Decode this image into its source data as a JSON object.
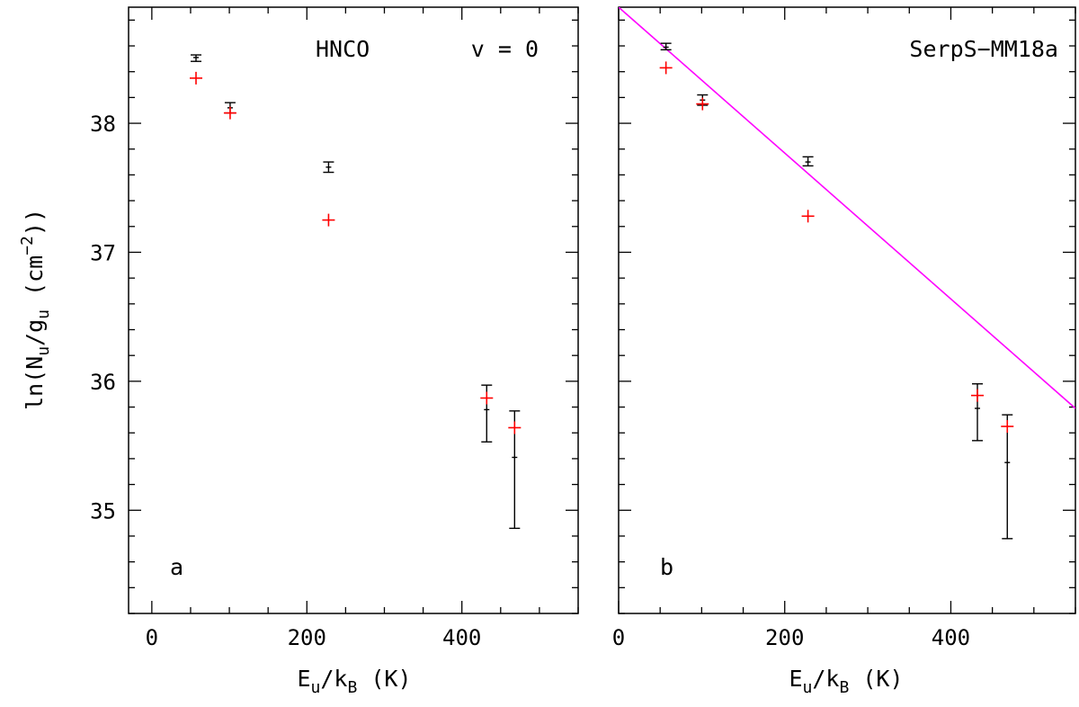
{
  "figure": {
    "ylabel": {
      "prefix": "ln(N",
      "sub1": "u",
      "mid": "/g",
      "sub2": "u",
      "unit_open": " (cm",
      "sup": "−2",
      "close": "))"
    },
    "xlabel": {
      "prefix": "E",
      "sub1": "u",
      "mid": "/k",
      "sub2": "B",
      "unit": " (K)"
    }
  },
  "chart_data": [
    {
      "type": "scatter",
      "panel_label": "a",
      "annotations": {
        "molecule": "HNCO",
        "state": "v = 0",
        "source": ""
      },
      "xlim": [
        -30,
        550
      ],
      "ylim": [
        34.2,
        38.9
      ],
      "xticks": [
        0,
        200,
        400
      ],
      "xtick_labels": [
        "0",
        "200",
        "400"
      ],
      "yticks": [
        35,
        36,
        37,
        38
      ],
      "ytick_labels": [
        "35",
        "36",
        "37",
        "38"
      ],
      "show_yticklabels": true,
      "series": [
        {
          "name": "observed",
          "color": "#000000",
          "marker": "errorbar",
          "points": [
            {
              "x": 57,
              "y": 38.51,
              "ylo": 38.48,
              "yhi": 38.53
            },
            {
              "x": 101,
              "y": 38.12,
              "ylo": 38.08,
              "yhi": 38.16
            },
            {
              "x": 228,
              "y": 37.66,
              "ylo": 37.62,
              "yhi": 37.7
            },
            {
              "x": 432,
              "y": 35.78,
              "ylo": 35.53,
              "yhi": 35.97
            },
            {
              "x": 468,
              "y": 35.41,
              "ylo": 34.86,
              "yhi": 35.77
            }
          ]
        },
        {
          "name": "model",
          "color": "#ff0000",
          "marker": "plus",
          "points": [
            {
              "x": 57,
              "y": 38.35
            },
            {
              "x": 101,
              "y": 38.08
            },
            {
              "x": 228,
              "y": 37.25
            },
            {
              "x": 432,
              "y": 35.87
            },
            {
              "x": 468,
              "y": 35.64
            }
          ]
        }
      ],
      "fit_line": null
    },
    {
      "type": "scatter",
      "panel_label": "b",
      "annotations": {
        "molecule": "",
        "state": "",
        "source": "SerpS−MM18a"
      },
      "xlim": [
        0,
        550
      ],
      "ylim": [
        34.2,
        38.9
      ],
      "xticks": [
        0,
        200,
        400
      ],
      "xtick_labels": [
        "0",
        "200",
        "400"
      ],
      "yticks": [
        35,
        36,
        37,
        38
      ],
      "ytick_labels": [
        "35",
        "36",
        "37",
        "38"
      ],
      "show_yticklabels": false,
      "series": [
        {
          "name": "observed",
          "color": "#000000",
          "marker": "errorbar",
          "points": [
            {
              "x": 57,
              "y": 38.59,
              "ylo": 38.57,
              "yhi": 38.62
            },
            {
              "x": 101,
              "y": 38.18,
              "ylo": 38.14,
              "yhi": 38.22
            },
            {
              "x": 228,
              "y": 37.7,
              "ylo": 37.67,
              "yhi": 37.74
            },
            {
              "x": 432,
              "y": 35.79,
              "ylo": 35.54,
              "yhi": 35.98
            },
            {
              "x": 468,
              "y": 35.37,
              "ylo": 34.78,
              "yhi": 35.74
            }
          ]
        },
        {
          "name": "model",
          "color": "#ff0000",
          "marker": "plus",
          "points": [
            {
              "x": 57,
              "y": 38.43
            },
            {
              "x": 101,
              "y": 38.15
            },
            {
              "x": 228,
              "y": 37.28
            },
            {
              "x": 432,
              "y": 35.89
            },
            {
              "x": 468,
              "y": 35.65
            }
          ]
        }
      ],
      "fit_line": {
        "color": "#ff00ff",
        "x": [
          0,
          550
        ],
        "y": [
          38.9,
          35.79
        ]
      }
    }
  ]
}
